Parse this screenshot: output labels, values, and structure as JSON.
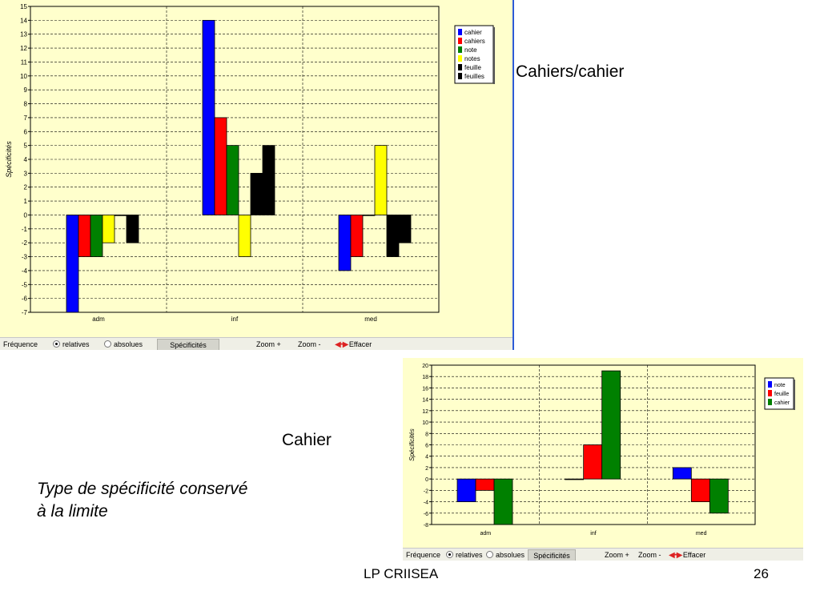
{
  "slide": {
    "label_top": "Cahiers/cahier",
    "label_bottom": "Cahier",
    "note_line1": "Type de spécificité conservé",
    "note_line2": "à la limite",
    "footer": "LP CRIISEA",
    "page_number": "26"
  },
  "toolbar": {
    "frequence_label": "Fréquence",
    "relatives_label": "relatives",
    "absolues_label": "absolues",
    "specificites_tab": "Spécificités",
    "zoom_in_label": "Zoom +",
    "zoom_out_label": "Zoom -",
    "effacer_label": "Effacer",
    "selected": "relatives"
  },
  "chart_data": [
    {
      "type": "bar",
      "ylabel": "Spécificités",
      "ylim": [
        -7,
        15
      ],
      "yticks": [
        -7,
        -6,
        -5,
        -4,
        -3,
        -2,
        -1,
        0,
        1,
        2,
        3,
        4,
        5,
        6,
        7,
        8,
        9,
        10,
        11,
        12,
        13,
        14,
        15
      ],
      "categories": [
        "adm",
        "inf",
        "med"
      ],
      "series": [
        {
          "name": "cahier",
          "color": "#0000ff",
          "values": [
            -7,
            14,
            -4
          ]
        },
        {
          "name": "cahiers",
          "color": "#ff0000",
          "values": [
            -3,
            7,
            -3
          ]
        },
        {
          "name": "note",
          "color": "#008000",
          "values": [
            -3,
            5,
            0
          ]
        },
        {
          "name": "notes",
          "color": "#ffff00",
          "values": [
            -2,
            -3,
            5
          ]
        },
        {
          "name": "feuille",
          "color": "#000000",
          "values": [
            0,
            3,
            -3
          ]
        },
        {
          "name": "feuilles",
          "color": "#000000",
          "values": [
            -2,
            5,
            -2
          ]
        }
      ],
      "legend": "top-right",
      "grid": true
    },
    {
      "type": "bar",
      "ylabel": "Spécificités",
      "ylim": [
        -8,
        20
      ],
      "yticks": [
        -8,
        -6,
        -4,
        -2,
        0,
        2,
        4,
        6,
        8,
        10,
        12,
        14,
        16,
        18,
        20
      ],
      "categories": [
        "adm",
        "inf",
        "med"
      ],
      "series": [
        {
          "name": "note",
          "color": "#0000ff",
          "values": [
            -4,
            0,
            2
          ]
        },
        {
          "name": "feuille",
          "color": "#ff0000",
          "values": [
            -2,
            6,
            -4
          ]
        },
        {
          "name": "cahier",
          "color": "#008000",
          "values": [
            -8,
            19,
            -6
          ]
        }
      ],
      "legend": "top-right",
      "grid": true
    }
  ]
}
